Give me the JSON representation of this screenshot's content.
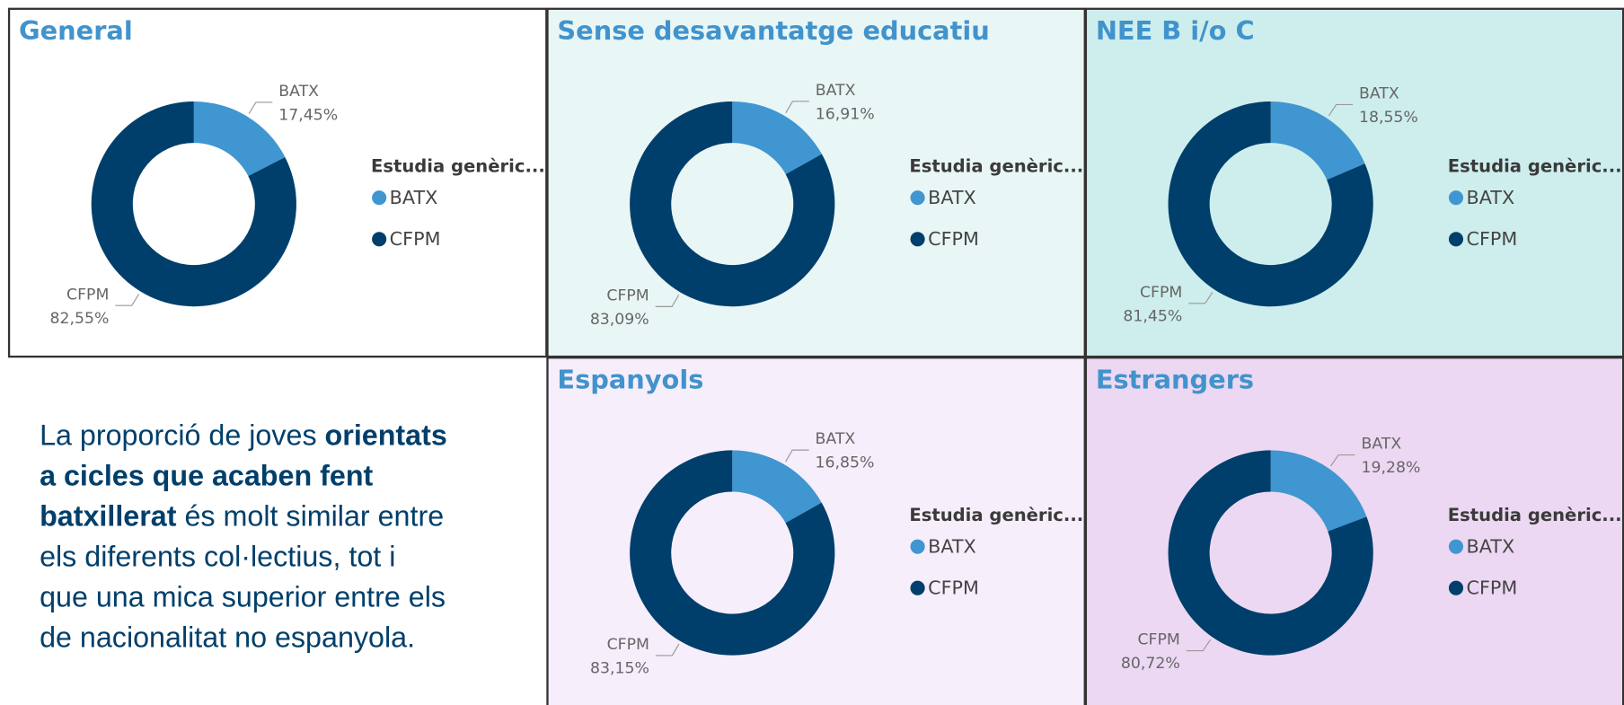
{
  "chart_data": [
    {
      "type": "donut",
      "title": "General",
      "legend_title": "Estudia genèric...",
      "categories": [
        "BATX",
        "CFPM"
      ],
      "values": [
        17.45,
        82.55
      ],
      "value_labels": [
        "17,45%",
        "82,55%"
      ],
      "colors": [
        "#4096d0",
        "#003f6b"
      ]
    },
    {
      "type": "donut",
      "title": "Sense desavantatge educatiu",
      "legend_title": "Estudia genèric...",
      "categories": [
        "BATX",
        "CFPM"
      ],
      "values": [
        16.91,
        83.09
      ],
      "value_labels": [
        "16,91%",
        "83,09%"
      ],
      "colors": [
        "#4096d0",
        "#003f6b"
      ]
    },
    {
      "type": "donut",
      "title": "NEE B i/o C",
      "legend_title": "Estudia genèric...",
      "categories": [
        "BATX",
        "CFPM"
      ],
      "values": [
        18.55,
        81.45
      ],
      "value_labels": [
        "18,55%",
        "81,45%"
      ],
      "colors": [
        "#4096d0",
        "#003f6b"
      ]
    },
    {
      "type": "donut",
      "title": "Espanyols",
      "legend_title": "Estudia genèric...",
      "categories": [
        "BATX",
        "CFPM"
      ],
      "values": [
        16.85,
        83.15
      ],
      "value_labels": [
        "16,85%",
        "83,15%"
      ],
      "colors": [
        "#4096d0",
        "#003f6b"
      ]
    },
    {
      "type": "donut",
      "title": "Estrangers",
      "legend_title": "Estudia genèric...",
      "categories": [
        "BATX",
        "CFPM"
      ],
      "values": [
        19.28,
        80.72
      ],
      "value_labels": [
        "19,28%",
        "80,72%"
      ],
      "colors": [
        "#4096d0",
        "#003f6b"
      ]
    }
  ],
  "note": {
    "lines": [
      [
        {
          "text": "La proporció de joves ",
          "bold": false
        },
        {
          "text": "orientats",
          "bold": true
        }
      ],
      [
        {
          "text": "a cicles que acaben fent",
          "bold": true
        }
      ],
      [
        {
          "text": "batxillerat",
          "bold": true
        },
        {
          "text": " és molt similar entre",
          "bold": false
        }
      ],
      [
        {
          "text": "els diferents col·lectius, tot i",
          "bold": false
        }
      ],
      [
        {
          "text": "que una mica superior entre els",
          "bold": false
        }
      ],
      [
        {
          "text": "de nacionalitat no espanyola.",
          "bold": false
        }
      ]
    ]
  }
}
